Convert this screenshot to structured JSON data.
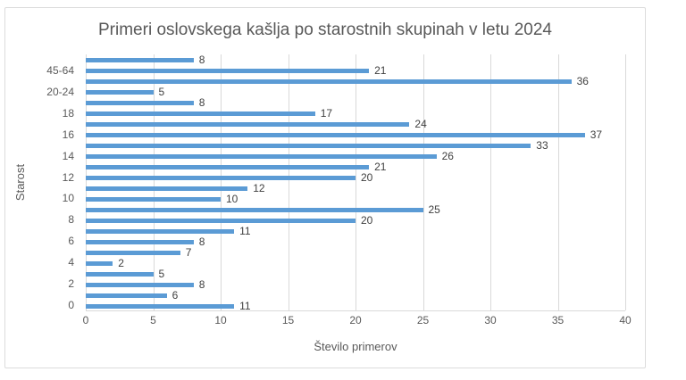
{
  "chart_data": {
    "type": "bar",
    "orientation": "horizontal",
    "title": "Primeri oslovskega kašlja po starostnih skupinah v letu 2024",
    "xlabel": "Število primerov",
    "ylabel": "Starost",
    "xlim": [
      0,
      40
    ],
    "xticks": [
      0,
      5,
      10,
      15,
      20,
      25,
      30,
      35,
      40
    ],
    "grid": true,
    "legend": false,
    "data_labels": true,
    "colors": {
      "bar": "#5B9BD5",
      "gridline": "#D9D9D9",
      "title_text": "#595959",
      "tick_text": "#595959",
      "data_label_text": "#404040",
      "chart_border": "#DCDCDC"
    },
    "bars_top_to_bottom": [
      {
        "label": "",
        "value": 8
      },
      {
        "label": "45-64",
        "value": 21
      },
      {
        "label": "",
        "value": 36
      },
      {
        "label": "20-24",
        "value": 5
      },
      {
        "label": "",
        "value": 8
      },
      {
        "label": "18",
        "value": 17
      },
      {
        "label": "",
        "value": 24
      },
      {
        "label": "16",
        "value": 37
      },
      {
        "label": "",
        "value": 33
      },
      {
        "label": "14",
        "value": 26
      },
      {
        "label": "",
        "value": 21
      },
      {
        "label": "12",
        "value": 20
      },
      {
        "label": "",
        "value": 12
      },
      {
        "label": "10",
        "value": 10
      },
      {
        "label": "",
        "value": 25
      },
      {
        "label": "8",
        "value": 20
      },
      {
        "label": "",
        "value": 11
      },
      {
        "label": "6",
        "value": 8
      },
      {
        "label": "",
        "value": 7
      },
      {
        "label": "4",
        "value": 2
      },
      {
        "label": "",
        "value": 5
      },
      {
        "label": "2",
        "value": 8
      },
      {
        "label": "",
        "value": 6
      },
      {
        "label": "0",
        "value": 11
      }
    ]
  }
}
